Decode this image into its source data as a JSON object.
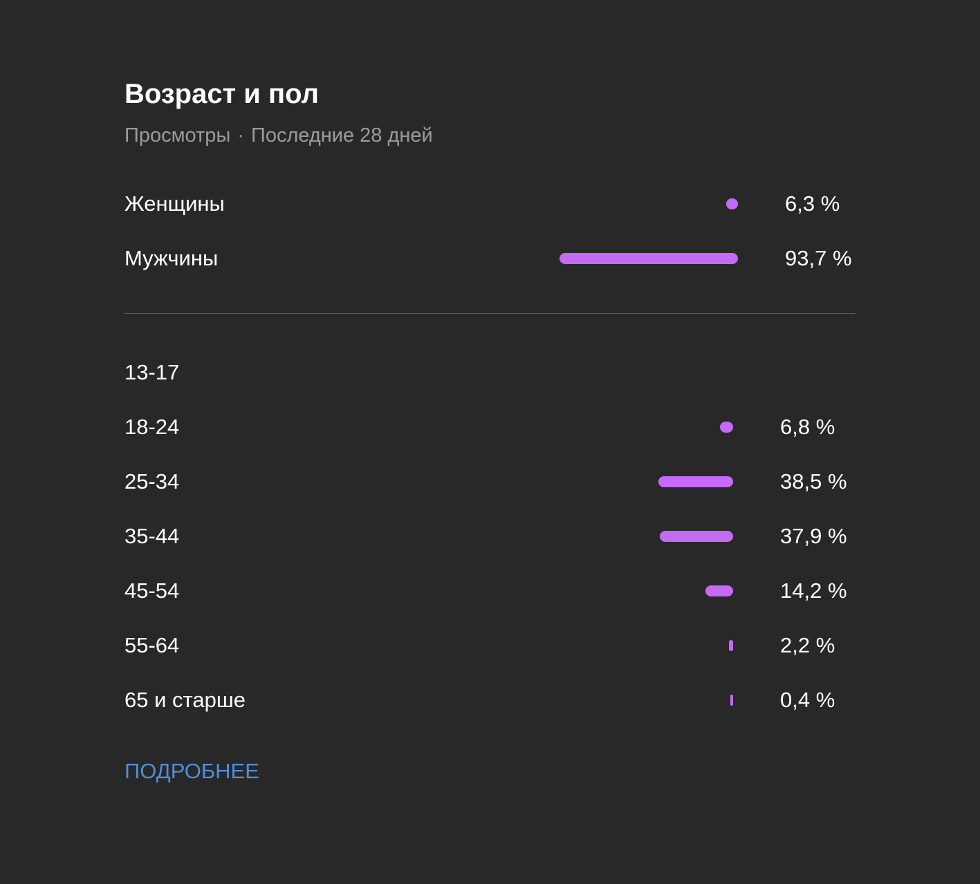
{
  "header": {
    "title": "Возраст и пол",
    "metric": "Просмотры",
    "separator": "·",
    "period": "Последние 28 дней"
  },
  "chart_data": [
    {
      "type": "bar",
      "categories": [
        "Женщины",
        "Мужчины"
      ],
      "values": [
        6.3,
        93.7
      ],
      "value_labels": [
        "6,3 %",
        "93,7 %"
      ],
      "unit": "%",
      "bar_color": "#c46af5"
    },
    {
      "type": "bar",
      "categories": [
        "13-17",
        "18-24",
        "25-34",
        "35-44",
        "45-54",
        "55-64",
        "65 и старше"
      ],
      "values": [
        null,
        6.8,
        38.5,
        37.9,
        14.2,
        2.2,
        0.4
      ],
      "value_labels": [
        "",
        "6,8 %",
        "38,5 %",
        "37,9 %",
        "14,2 %",
        "2,2 %",
        "0,4 %"
      ],
      "unit": "%",
      "bar_color": "#c46af5"
    }
  ],
  "footer": {
    "more_label": "ПОДРОБНЕЕ"
  },
  "colors": {
    "background": "#282828",
    "bar": "#c46af5",
    "link": "#4f8fd6",
    "muted_text": "#9b9b9b"
  }
}
